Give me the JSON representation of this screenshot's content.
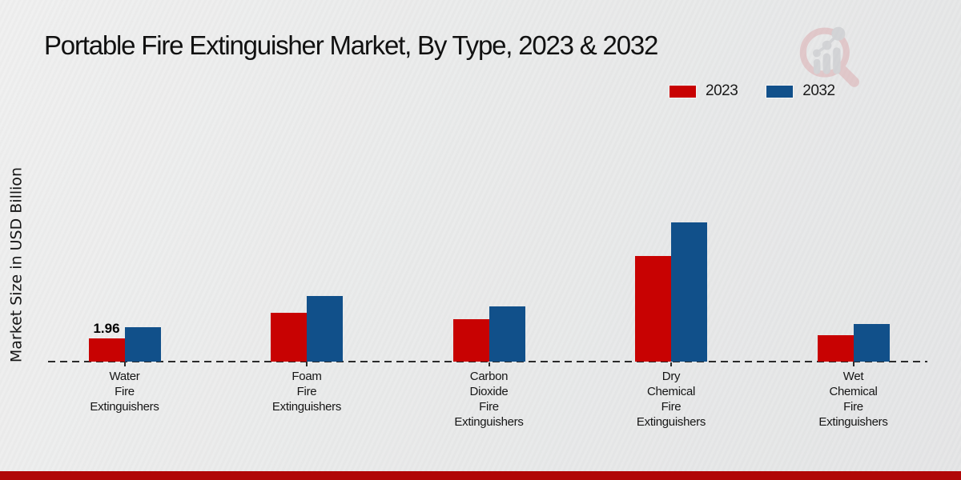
{
  "header": {
    "title": "Portable Fire Extinguisher Market, By Type, 2023 & 2032"
  },
  "legend": {
    "items": [
      {
        "label": "2023",
        "color": "#c80202"
      },
      {
        "label": "2032",
        "color": "#11508a"
      }
    ]
  },
  "y_axis": {
    "label": "Market Size in USD Billion"
  },
  "icons": {
    "watermark": "magnifier-bar-chart-logo"
  },
  "footer": {
    "accent_color": "#b00707"
  },
  "chart_data": {
    "type": "bar",
    "title": "Portable Fire Extinguisher Market, By Type, 2023 & 2032",
    "ylabel": "Market Size in USD Billion",
    "xlabel": "",
    "categories": [
      "Water Fire Extinguishers",
      "Foam Fire Extinguishers",
      "Carbon Dioxide Fire Extinguishers",
      "Dry Chemical Fire Extinguishers",
      "Wet Chemical Fire Extinguishers"
    ],
    "series": [
      {
        "name": "2023",
        "color": "#c80202",
        "values": [
          1.96,
          4.1,
          3.6,
          8.9,
          2.25
        ]
      },
      {
        "name": "2032",
        "color": "#11508a",
        "values": [
          2.9,
          5.55,
          4.65,
          11.75,
          3.2
        ]
      }
    ],
    "value_labels": [
      {
        "series": "2023",
        "category": "Water Fire Extinguishers",
        "text": "1.96"
      }
    ],
    "ylim": [
      0,
      13
    ],
    "grid": false,
    "baseline_style": "dashed",
    "legend_position": "top-right"
  }
}
